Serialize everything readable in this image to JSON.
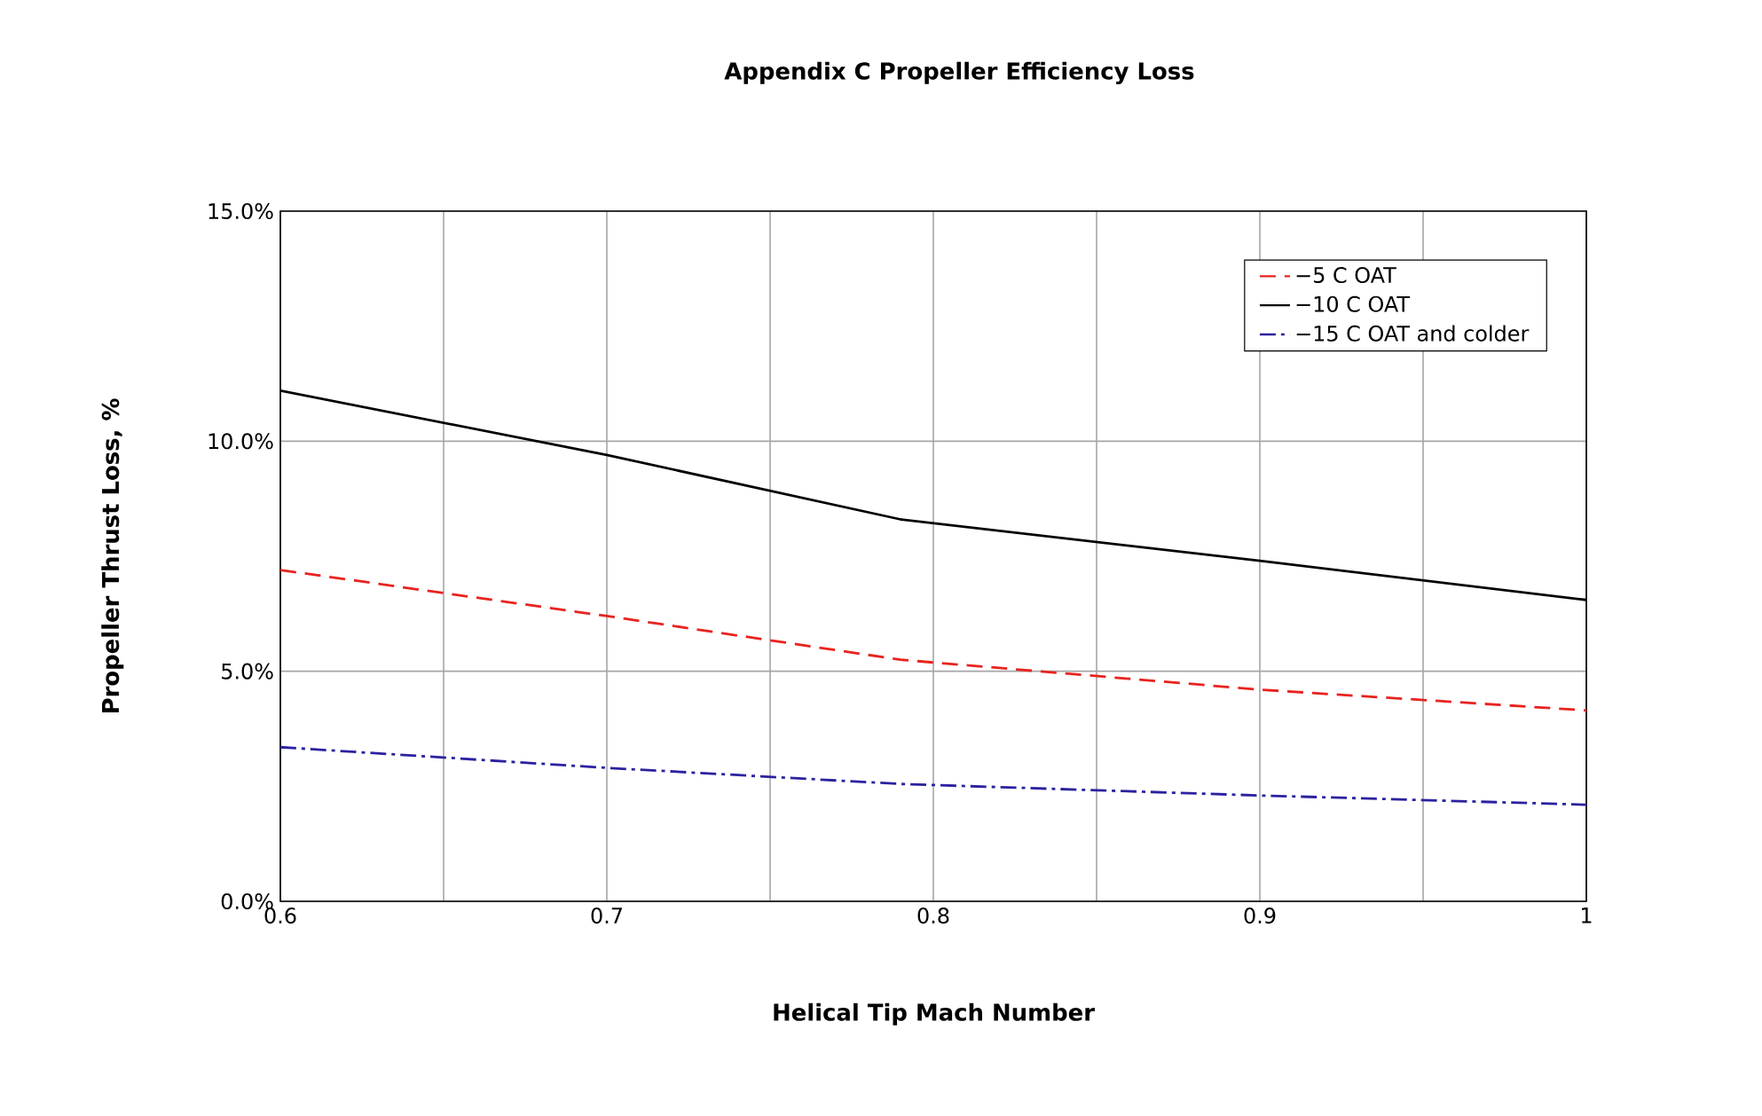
{
  "chart_data": {
    "type": "line",
    "title": "Appendix C Propeller Efficiency Loss",
    "xlabel": "Helical Tip Mach Number",
    "ylabel": "Propeller Thrust Loss, %",
    "x": [
      0.6,
      0.7,
      0.79,
      0.9,
      1.0
    ],
    "series": [
      {
        "name": "−5 C OAT",
        "color": "#e8231f",
        "line_style": "dashed",
        "values": [
          7.2,
          6.2,
          5.25,
          4.6,
          4.15
        ]
      },
      {
        "name": "−10 C OAT",
        "color": "#000000",
        "line_style": "solid",
        "values": [
          11.1,
          9.7,
          8.3,
          7.4,
          6.55
        ]
      },
      {
        "name": "−15 C OAT and colder",
        "color": "#2b22a0",
        "line_style": "dashdot",
        "values": [
          3.35,
          2.9,
          2.55,
          2.3,
          2.1
        ]
      }
    ],
    "xlim": [
      0.6,
      1.0
    ],
    "xticks": [
      0.6,
      {
        "value": 0.65,
        "label": null
      },
      0.7,
      {
        "value": 0.75,
        "label": null
      },
      0.8,
      {
        "value": 0.85,
        "label": null
      },
      0.9,
      {
        "value": 0.95,
        "label": null
      },
      1
    ],
    "ylim": [
      0,
      15
    ],
    "yticks": [
      {
        "value": 0,
        "label": "0.0%"
      },
      {
        "value": 5,
        "label": "5.0%"
      },
      {
        "value": 10,
        "label": "10.0%"
      },
      {
        "value": 15,
        "label": "15.0%"
      }
    ],
    "grid": true,
    "legend": "top right",
    "marker": "none"
  }
}
